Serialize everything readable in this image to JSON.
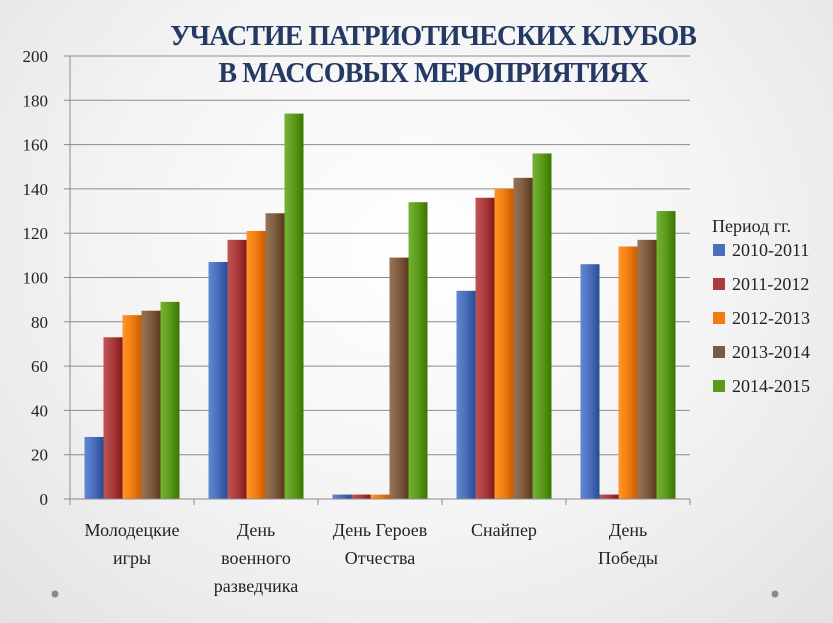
{
  "chart_data": {
    "type": "bar",
    "title_lines": [
      "УЧАСТИЕ ПАТРИОТИЧЕСКИХ КЛУБОВ",
      "В МАССОВЫХ МЕРОПРИЯТИЯХ"
    ],
    "categories": [
      [
        "Молодецкие",
        "игры"
      ],
      [
        "День",
        "военного",
        "разведчика"
      ],
      [
        "День Героев",
        "Отчества"
      ],
      [
        "Снайпер"
      ],
      [
        "День",
        "Победы"
      ]
    ],
    "ylim": [
      0,
      200
    ],
    "yticks": [
      0,
      20,
      40,
      60,
      80,
      100,
      120,
      140,
      160,
      180,
      200
    ],
    "grid": true,
    "legend": {
      "title": "Период гг.",
      "position": "right"
    },
    "series": [
      {
        "name": "2010-2011",
        "color": "#4a6fba",
        "values": [
          28,
          107,
          2,
          94,
          106
        ]
      },
      {
        "name": "2011-2012",
        "color": "#a83b3b",
        "values": [
          73,
          117,
          2,
          136,
          2
        ]
      },
      {
        "name": "2012-2013",
        "color": "#f07d10",
        "values": [
          83,
          121,
          2,
          140,
          114
        ]
      },
      {
        "name": "2013-2014",
        "color": "#7e5b3e",
        "values": [
          85,
          129,
          109,
          145,
          117
        ]
      },
      {
        "name": "2014-2015",
        "color": "#5c9a1c",
        "values": [
          89,
          174,
          134,
          156,
          130
        ]
      }
    ]
  }
}
